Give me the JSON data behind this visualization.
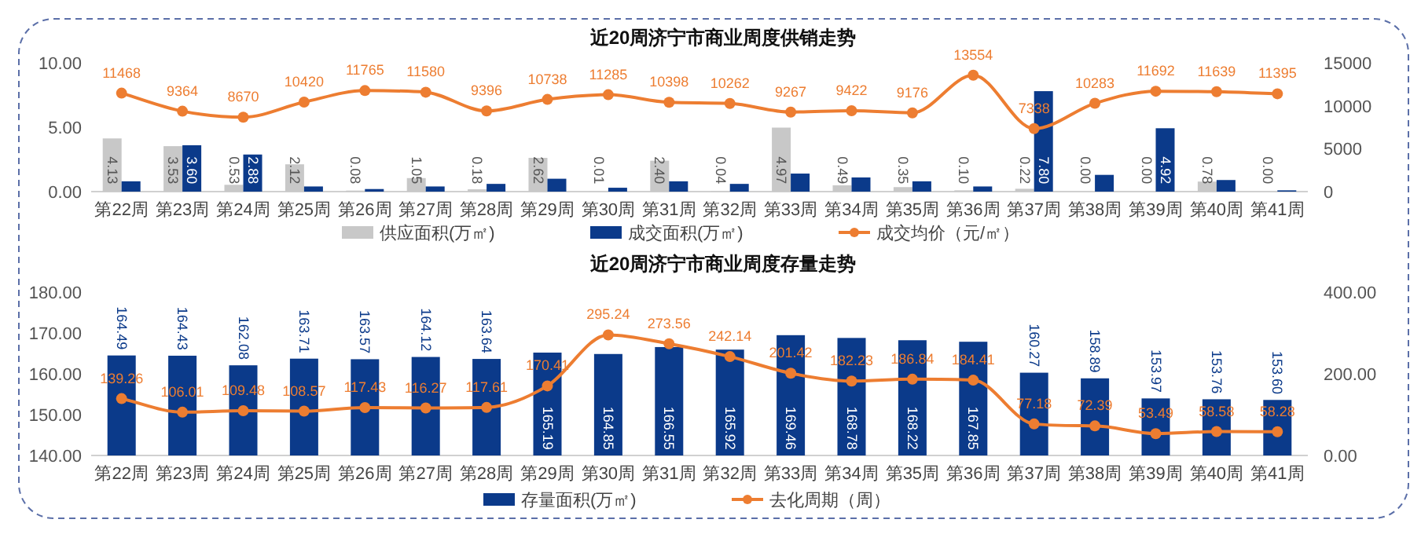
{
  "chart_data": [
    {
      "type": "bar",
      "title": "近20周济宁市商业周度供销走势",
      "categories": [
        "第22周",
        "第23周",
        "第24周",
        "第25周",
        "第26周",
        "第27周",
        "第28周",
        "第29周",
        "第30周",
        "第31周",
        "第32周",
        "第33周",
        "第34周",
        "第35周",
        "第36周",
        "第37周",
        "第38周",
        "第39周",
        "第40周",
        "第41周"
      ],
      "series": [
        {
          "name": "供应面积(万㎡)",
          "color": "#c8c8c8",
          "values": [
            4.13,
            3.53,
            0.53,
            2.12,
            0.08,
            1.05,
            0.18,
            2.62,
            0.01,
            2.4,
            0.04,
            4.97,
            0.49,
            0.35,
            0.1,
            0.22,
            0.0,
            0.0,
            0.78,
            0.0
          ],
          "value_labels": [
            "4.13",
            "3.53",
            "0.53",
            "2.12",
            "0.08",
            "1.05",
            "0.18",
            "2.62",
            "0.01",
            "2.40",
            "0.04",
            "4.97",
            "0.49",
            "0.35",
            "0.10",
            "0.22",
            "0.00",
            "0.00",
            "0.78",
            "0.00"
          ]
        },
        {
          "name": "成交面积(万㎡)",
          "color": "#0b3a8a",
          "values": [
            0.8,
            3.6,
            2.88,
            0.4,
            0.2,
            0.4,
            0.6,
            1.0,
            0.3,
            0.8,
            0.6,
            1.4,
            1.1,
            0.8,
            0.4,
            7.8,
            1.3,
            4.92,
            0.9,
            0.1
          ],
          "value_labels": [
            null,
            "3.60",
            "2.88",
            null,
            null,
            null,
            null,
            null,
            null,
            null,
            null,
            null,
            null,
            null,
            null,
            "7.80",
            null,
            "4.92",
            null,
            null
          ]
        },
        {
          "name": "成交均价（元/㎡）",
          "type": "line",
          "axis": "y2",
          "color": "#ed7d31",
          "values": [
            11468,
            9364,
            8670,
            10420,
            11765,
            11580,
            9396,
            10738,
            11285,
            10398,
            10262,
            9267,
            9422,
            9176,
            13554,
            7338,
            10283,
            11692,
            11639,
            11395
          ],
          "value_labels": [
            "11468",
            "9364",
            "8670",
            "10420",
            "11765",
            "11580",
            "9396",
            "10738",
            "11285",
            "10398",
            "10262",
            "9267",
            "9422",
            "9176",
            "13554",
            "7338",
            "10283",
            "11692",
            "11639",
            "11395"
          ]
        }
      ],
      "ylim": [
        0,
        10
      ],
      "yticks": [
        {
          "value": 0,
          "label": "0.00"
        },
        {
          "value": 5,
          "label": "5.00"
        },
        {
          "value": 10,
          "label": "10.00"
        }
      ],
      "y2lim": [
        0,
        15000
      ],
      "y2ticks": [
        0,
        5000,
        10000,
        15000
      ],
      "marker": "circle",
      "legend": "bottom"
    },
    {
      "type": "bar",
      "title": "近20周济宁市商业周度存量走势",
      "categories": [
        "第22周",
        "第23周",
        "第24周",
        "第25周",
        "第26周",
        "第27周",
        "第28周",
        "第29周",
        "第30周",
        "第31周",
        "第32周",
        "第33周",
        "第34周",
        "第35周",
        "第36周",
        "第37周",
        "第38周",
        "第39周",
        "第40周",
        "第41周"
      ],
      "series": [
        {
          "name": "存量面积(万㎡)",
          "color": "#0b3a8a",
          "values": [
            164.49,
            164.43,
            162.08,
            163.71,
            163.57,
            164.12,
            163.64,
            165.19,
            164.85,
            166.55,
            165.92,
            169.46,
            168.78,
            168.22,
            167.85,
            160.27,
            158.89,
            153.97,
            153.76,
            153.6
          ],
          "value_labels": [
            "164.49",
            "164.43",
            "162.08",
            "163.71",
            "163.57",
            "164.12",
            "163.64",
            "165.19",
            "164.85",
            "166.55",
            "165.92",
            "169.46",
            "168.78",
            "168.22",
            "167.85",
            "160.27",
            "158.89",
            "153.97",
            "153.76",
            "153.60"
          ]
        },
        {
          "name": "去化周期（周）",
          "type": "line",
          "axis": "y2",
          "color": "#ed7d31",
          "values": [
            139.26,
            106.01,
            109.48,
            108.57,
            117.43,
            116.27,
            117.61,
            170.41,
            295.24,
            273.56,
            242.14,
            201.42,
            182.23,
            186.84,
            184.41,
            77.18,
            72.39,
            53.49,
            58.58,
            58.28
          ],
          "value_labels": [
            "139.26",
            "106.01",
            "109.48",
            "108.57",
            "117.43",
            "116.27",
            "117.61",
            "170.41",
            "295.24",
            "273.56",
            "242.14",
            "201.42",
            "182.23",
            "186.84",
            "184.41",
            "77.18",
            "72.39",
            "53.49",
            "58.58",
            "58.28"
          ]
        }
      ],
      "ylim": [
        140,
        180
      ],
      "yticks": [
        {
          "value": 140,
          "label": "140.00"
        },
        {
          "value": 150,
          "label": "150.00"
        },
        {
          "value": 160,
          "label": "160.00"
        },
        {
          "value": 170,
          "label": "170.00"
        },
        {
          "value": 180,
          "label": "180.00"
        }
      ],
      "y2lim": [
        0,
        400
      ],
      "y2ticks": [
        {
          "value": 0,
          "label": "0.00"
        },
        {
          "value": 200,
          "label": "200.00"
        },
        {
          "value": 400,
          "label": "400.00"
        }
      ],
      "marker": "circle",
      "legend": "bottom"
    }
  ]
}
